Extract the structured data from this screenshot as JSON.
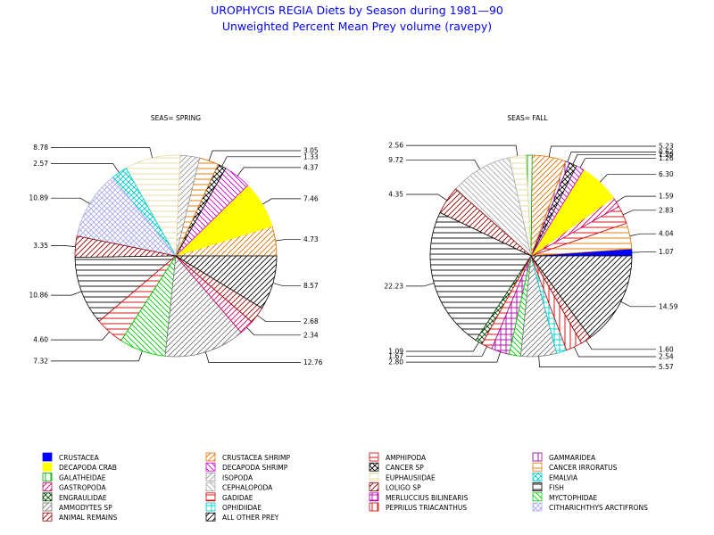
{
  "chart_data": {
    "type": "pie",
    "title": "UROPHYCIS REGIA Diets by Season during 1981—90",
    "subtitle": "Unweighted Percent Mean Prey volume (ravepy)",
    "legend": [
      {
        "name": "CRUSTACEA",
        "color": "#0000ff",
        "pattern": "solid"
      },
      {
        "name": "CRUSTACEA SHRIMP",
        "color": "#e07000",
        "pattern": "hatch45"
      },
      {
        "name": "AMPHIPODA",
        "color": "#cc0000",
        "pattern": "hhatch"
      },
      {
        "name": "GAMMARIDEA",
        "color": "#8b008b",
        "pattern": "vhatch"
      },
      {
        "name": "DECAPODA CRAB",
        "color": "#ffff00",
        "pattern": "solid"
      },
      {
        "name": "DECAPODA SHRIMP",
        "color": "#cc00cc",
        "pattern": "hatch135"
      },
      {
        "name": "CANCER SP",
        "color": "#000000",
        "pattern": "cross45"
      },
      {
        "name": "CANCER IRRORATUS",
        "color": "#e07000",
        "pattern": "hhatch"
      },
      {
        "name": "GALATHEIDAE",
        "color": "#00aa00",
        "pattern": "vhatch"
      },
      {
        "name": "ISOPODA",
        "color": "#999999",
        "pattern": "hatch45"
      },
      {
        "name": "EUPHAUSIIDAE",
        "color": "#e8d8a0",
        "pattern": "hhatch"
      },
      {
        "name": "EMALVIA",
        "color": "#00cccc",
        "pattern": "cross45"
      },
      {
        "name": "GASTROPODA",
        "color": "#cc0066",
        "pattern": "hatch45"
      },
      {
        "name": "CEPHALOPODA",
        "color": "#aaaaaa",
        "pattern": "hatch135"
      },
      {
        "name": "LOLIGO SP",
        "color": "#8b0000",
        "pattern": "hatch45"
      },
      {
        "name": "FISH",
        "color": "#000000",
        "pattern": "hhatch"
      },
      {
        "name": "ENGRAULIDAE",
        "color": "#004400",
        "pattern": "cross45"
      },
      {
        "name": "GADIDAE",
        "color": "#cc0000",
        "pattern": "hhatch"
      },
      {
        "name": "MERLUCCIUS BILINEARIS",
        "color": "#aa00aa",
        "pattern": "cross"
      },
      {
        "name": "MYCTOPHIDAE",
        "color": "#00cc00",
        "pattern": "hatch135"
      },
      {
        "name": "AMMODYTES SP",
        "color": "#777777",
        "pattern": "hatch45"
      },
      {
        "name": "OPHIDIIDAE",
        "color": "#00cccc",
        "pattern": "cross"
      },
      {
        "name": "PEPRILUS TRIACANTHUS",
        "color": "#cc0000",
        "pattern": "vhatch"
      },
      {
        "name": "CITHARICHTHYS ARCTIFRONS",
        "color": "#aaaaee",
        "pattern": "cross45"
      },
      {
        "name": "ANIMAL REMAINS",
        "color": "#990000",
        "pattern": "hatch45"
      },
      {
        "name": "ALL OTHER PREY",
        "color": "#000000",
        "pattern": "hatch45"
      }
    ],
    "pies": [
      {
        "label": "SEAS= SPRING",
        "slices": [
          {
            "name": "CRUSTACEA SHRIMP",
            "value": 4.73,
            "label": "4.73"
          },
          {
            "name": "DECAPODA CRAB",
            "value": 7.46,
            "label": "7.46"
          },
          {
            "name": "DECAPODA SHRIMP",
            "value": 4.37,
            "label": "4.37"
          },
          {
            "name": "CANCER SP",
            "value": 1.33,
            "label": "1.33"
          },
          {
            "name": "CANCER IRRORATUS",
            "value": 3.05,
            "label": "3.05"
          },
          {
            "name": "ISOPODA",
            "value": 3.06,
            "label": ""
          },
          {
            "name": "EUPHAUSIIDAE",
            "value": 8.78,
            "label": "8.78"
          },
          {
            "name": "EMALVIA",
            "value": 2.57,
            "label": "2.57"
          },
          {
            "name": "CITHARICHTHYS ARCTIFRONS",
            "value": 10.89,
            "label": "10.89"
          },
          {
            "name": "LOLIGO SP",
            "value": 3.35,
            "label": "3.35"
          },
          {
            "name": "FISH",
            "value": 10.86,
            "label": "10.86"
          },
          {
            "name": "GADIDAE",
            "value": 4.6,
            "label": "4.60"
          },
          {
            "name": "MYCTOPHIDAE",
            "value": 7.32,
            "label": "7.32"
          },
          {
            "name": "AMMODYTES SP",
            "value": 12.76,
            "label": "12.76"
          },
          {
            "name": "GASTROPODA",
            "value": 2.34,
            "label": "2.34"
          },
          {
            "name": "ANIMAL REMAINS",
            "value": 2.68,
            "label": "2.68"
          },
          {
            "name": "ALL OTHER PREY",
            "value": 8.57,
            "label": "8.57"
          }
        ]
      },
      {
        "label": "SEAS= FALL",
        "slices": [
          {
            "name": "CRUSTACEA",
            "value": 1.07,
            "label": "1.07"
          },
          {
            "name": "CANCER IRRORATUS",
            "value": 4.04,
            "label": "4.04"
          },
          {
            "name": "AMPHIPODA",
            "value": 2.83,
            "label": "2.83"
          },
          {
            "name": "GASTROPODA",
            "value": 1.59,
            "label": "1.59"
          },
          {
            "name": "DECAPODA CRAB",
            "value": 6.3,
            "label": "6.30"
          },
          {
            "name": "DECAPODA SHRIMP",
            "value": 1.26,
            "label": "1.26"
          },
          {
            "name": "CANCER SP",
            "value": 1.2,
            "label": "1.20"
          },
          {
            "name": "GAMMARIDEA",
            "value": 0.62,
            "label": "0.62"
          },
          {
            "name": "CRUSTACEA SHRIMP",
            "value": 5.23,
            "label": "5.23"
          },
          {
            "name": "GALATHEIDAE",
            "value": 0.98,
            "label": ""
          },
          {
            "name": "EUPHAUSIIDAE",
            "value": 2.56,
            "label": "2.56"
          },
          {
            "name": "CEPHALOPODA",
            "value": 9.72,
            "label": "9.72"
          },
          {
            "name": "LOLIGO SP",
            "value": 4.35,
            "label": "4.35"
          },
          {
            "name": "FISH",
            "value": 22.23,
            "label": "22.23"
          },
          {
            "name": "ENGRAULIDAE",
            "value": 1.09,
            "label": "1.09"
          },
          {
            "name": "GADIDAE",
            "value": 1.67,
            "label": "1.67"
          },
          {
            "name": "MERLUCCIUS BILINEARIS",
            "value": 2.8,
            "label": "2.80"
          },
          {
            "name": "MYCTOPHIDAE",
            "value": 1.8,
            "label": ""
          },
          {
            "name": "AMMODYTES SP",
            "value": 5.57,
            "label": "5.57"
          },
          {
            "name": "OPHIDIIDAE",
            "value": 1.6,
            "label": ""
          },
          {
            "name": "PEPRILUS TRIACANTHUS",
            "value": 2.54,
            "label": "2.54"
          },
          {
            "name": "ANIMAL REMAINS",
            "value": 1.6,
            "label": "1.60"
          },
          {
            "name": "ALL OTHER PREY",
            "value": 14.59,
            "label": "14.59"
          }
        ]
      }
    ]
  }
}
